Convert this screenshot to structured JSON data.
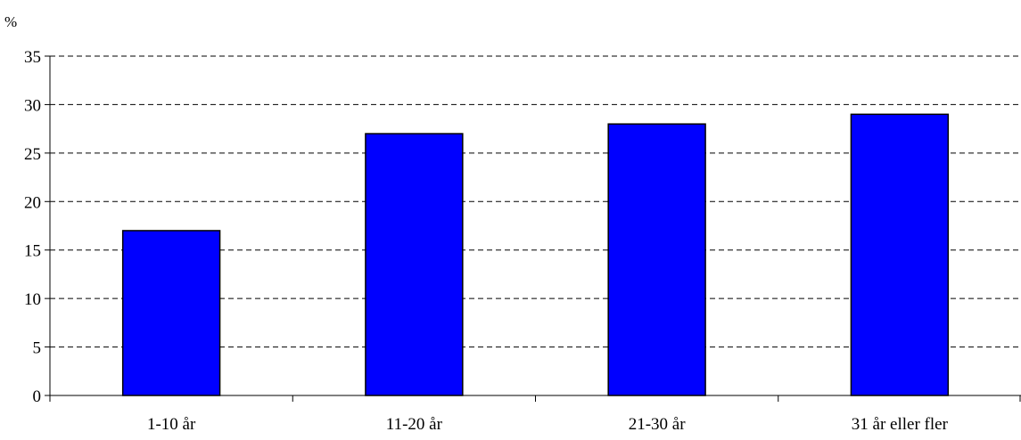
{
  "chart_data": {
    "type": "bar",
    "unit_label": "%",
    "categories": [
      "1-10 år",
      "11-20 år",
      "21-30 år",
      "31 år eller fler"
    ],
    "values": [
      17,
      27,
      28,
      29
    ],
    "ylim": [
      0,
      35
    ],
    "yticks": [
      0,
      5,
      10,
      15,
      20,
      25,
      30,
      35
    ],
    "grid": true,
    "legend": "none",
    "bar_color": "#0000FF"
  }
}
